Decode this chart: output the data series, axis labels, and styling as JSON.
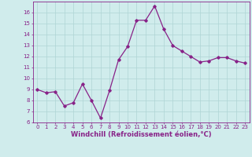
{
  "x": [
    0,
    1,
    2,
    3,
    4,
    5,
    6,
    7,
    8,
    9,
    10,
    11,
    12,
    13,
    14,
    15,
    16,
    17,
    18,
    19,
    20,
    21,
    22,
    23
  ],
  "y": [
    9.0,
    8.7,
    8.8,
    7.5,
    7.8,
    9.5,
    8.0,
    6.4,
    8.9,
    11.7,
    12.9,
    15.3,
    15.3,
    16.6,
    14.5,
    13.0,
    12.5,
    12.0,
    11.5,
    11.6,
    11.9,
    11.9,
    11.6,
    11.4
  ],
  "line_color": "#882288",
  "marker": "D",
  "marker_size": 1.8,
  "line_width": 0.9,
  "xlabel": "Windchill (Refroidissement éolien,°C)",
  "xlabel_fontsize": 6,
  "ylim": [
    6,
    17
  ],
  "xlim": [
    -0.5,
    23.5
  ],
  "yticks": [
    6,
    7,
    8,
    9,
    10,
    11,
    12,
    13,
    14,
    15,
    16
  ],
  "xticks": [
    0,
    1,
    2,
    3,
    4,
    5,
    6,
    7,
    8,
    9,
    10,
    11,
    12,
    13,
    14,
    15,
    16,
    17,
    18,
    19,
    20,
    21,
    22,
    23
  ],
  "tick_fontsize": 5,
  "bg_color": "#d0ecec",
  "grid_color": "#aed4d4",
  "spine_color": "#882288"
}
